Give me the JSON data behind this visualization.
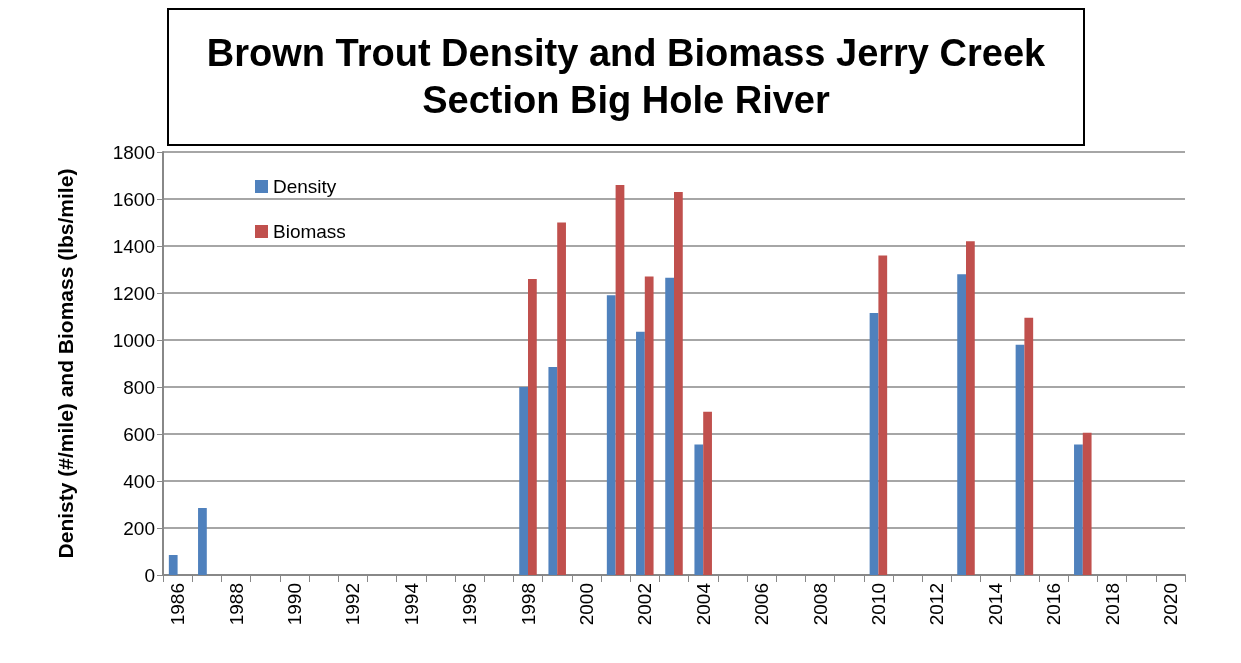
{
  "chart_data": {
    "type": "bar",
    "title": "Brown Trout Density and Biomass Jerry Creek Section Big Hole River",
    "ylabel": "Denisty (#/mile) and Biomass (lbs/mile)",
    "categories": [
      "1986",
      null,
      "1988",
      null,
      "1990",
      null,
      "1992",
      null,
      "1994",
      null,
      "1996",
      null,
      "1998",
      null,
      "2000",
      null,
      "2002",
      null,
      "2004",
      null,
      "2006",
      null,
      "2008",
      null,
      "2010",
      null,
      "2012",
      null,
      "2014",
      null,
      "2016",
      null,
      "2018",
      null,
      "2020"
    ],
    "series": [
      {
        "name": "Density",
        "color": "#4f81bd",
        "values": [
          85,
          285,
          null,
          null,
          null,
          null,
          null,
          null,
          null,
          null,
          null,
          null,
          800,
          885,
          null,
          1190,
          1035,
          1265,
          555,
          null,
          null,
          null,
          null,
          null,
          1115,
          null,
          null,
          1280,
          null,
          980,
          null,
          555,
          null,
          null,
          null
        ]
      },
      {
        "name": "Biomass",
        "color": "#c0504d",
        "values": [
          null,
          null,
          null,
          null,
          null,
          null,
          null,
          null,
          null,
          null,
          null,
          null,
          1260,
          1500,
          null,
          1660,
          1270,
          1630,
          695,
          null,
          null,
          null,
          null,
          null,
          1360,
          null,
          null,
          1420,
          null,
          1095,
          null,
          605,
          null,
          null,
          null
        ]
      }
    ],
    "ylim": [
      0,
      1800
    ],
    "yticks": [
      0,
      200,
      400,
      600,
      800,
      1000,
      1200,
      1400,
      1600,
      1800
    ],
    "grid": "y",
    "legend": "top left"
  }
}
